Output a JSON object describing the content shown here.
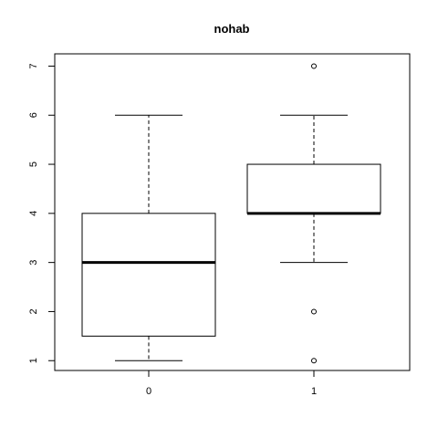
{
  "chart_data": {
    "type": "boxplot",
    "title": "nohab",
    "xlabel": "",
    "ylabel": "",
    "categories": [
      "0",
      "1"
    ],
    "ylim": [
      0.8,
      7.25
    ],
    "y_ticks": [
      "1",
      "2",
      "3",
      "4",
      "5",
      "6",
      "7"
    ],
    "grid": false,
    "legend": "none",
    "boxes": [
      {
        "category": "0",
        "whisker_low": 1,
        "q1": 1.5,
        "median": 3,
        "q3": 4,
        "whisker_high": 6,
        "outliers": []
      },
      {
        "category": "1",
        "whisker_low": 3,
        "q1": 4,
        "median": 4,
        "q3": 5,
        "whisker_high": 6,
        "outliers": [
          1,
          2,
          7
        ]
      }
    ],
    "colors": {
      "stroke": "#000000",
      "fill": "#ffffff"
    }
  }
}
